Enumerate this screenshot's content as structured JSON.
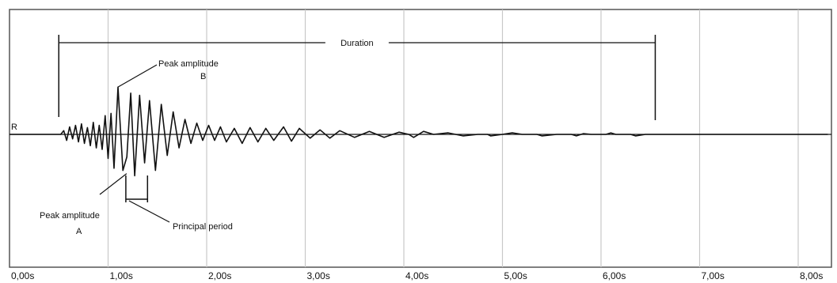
{
  "chart_data": {
    "type": "line",
    "title": "",
    "xlabel": "",
    "ylabel": "",
    "series_label": "R",
    "x_ticks": [
      "0,00s",
      "1,00s",
      "2,00s",
      "3,00s",
      "4,00s",
      "5,00s",
      "6,00s",
      "7,00s",
      "8,00s"
    ],
    "xlim": [
      0,
      8.3
    ],
    "grid": {
      "vertical": true,
      "horizontal": false
    },
    "duration": {
      "label": "Duration",
      "start": 0.5,
      "end": 6.55
    },
    "annotations": {
      "peak_b": {
        "line1": "Peak amplitude",
        "line2": "B",
        "x": 1.1
      },
      "peak_a": {
        "line1": "Peak amplitude",
        "line2": "A",
        "x": 1.22
      },
      "principal_period": {
        "label": "Principal period",
        "start": 1.18,
        "end": 1.4
      }
    },
    "waveform": {
      "baseline": 0,
      "points": [
        [
          0.0,
          0
        ],
        [
          0.52,
          0
        ],
        [
          0.55,
          0.05
        ],
        [
          0.58,
          -0.08
        ],
        [
          0.61,
          0.1
        ],
        [
          0.64,
          -0.06
        ],
        [
          0.67,
          0.12
        ],
        [
          0.7,
          -0.1
        ],
        [
          0.73,
          0.14
        ],
        [
          0.76,
          -0.12
        ],
        [
          0.79,
          0.09
        ],
        [
          0.82,
          -0.15
        ],
        [
          0.85,
          0.16
        ],
        [
          0.88,
          -0.18
        ],
        [
          0.91,
          0.12
        ],
        [
          0.94,
          -0.2
        ],
        [
          0.97,
          0.25
        ],
        [
          1.0,
          -0.32
        ],
        [
          1.03,
          0.28
        ],
        [
          1.06,
          -0.45
        ],
        [
          1.1,
          0.63
        ],
        [
          1.15,
          -0.48
        ],
        [
          1.19,
          -0.3
        ],
        [
          1.23,
          0.55
        ],
        [
          1.27,
          -0.55
        ],
        [
          1.32,
          0.52
        ],
        [
          1.37,
          -0.38
        ],
        [
          1.42,
          0.45
        ],
        [
          1.48,
          -0.48
        ],
        [
          1.54,
          0.4
        ],
        [
          1.6,
          -0.28
        ],
        [
          1.66,
          0.3
        ],
        [
          1.72,
          -0.18
        ],
        [
          1.78,
          0.2
        ],
        [
          1.84,
          -0.12
        ],
        [
          1.9,
          0.15
        ],
        [
          1.96,
          -0.08
        ],
        [
          2.02,
          0.12
        ],
        [
          2.08,
          -0.08
        ],
        [
          2.14,
          0.1
        ],
        [
          2.2,
          -0.1
        ],
        [
          2.28,
          0.08
        ],
        [
          2.36,
          -0.12
        ],
        [
          2.44,
          0.09
        ],
        [
          2.52,
          -0.1
        ],
        [
          2.6,
          0.08
        ],
        [
          2.68,
          -0.08
        ],
        [
          2.78,
          0.1
        ],
        [
          2.86,
          -0.09
        ],
        [
          2.94,
          0.08
        ],
        [
          3.05,
          -0.05
        ],
        [
          3.15,
          0.06
        ],
        [
          3.25,
          -0.05
        ],
        [
          3.35,
          0.05
        ],
        [
          3.5,
          -0.04
        ],
        [
          3.65,
          0.04
        ],
        [
          3.8,
          -0.04
        ],
        [
          3.95,
          0.03
        ],
        [
          4.05,
          0
        ],
        [
          4.1,
          -0.04
        ],
        [
          4.2,
          0.04
        ],
        [
          4.3,
          0
        ],
        [
          4.45,
          0.02
        ],
        [
          4.6,
          -0.02
        ],
        [
          4.75,
          0
        ],
        [
          4.85,
          0
        ],
        [
          4.88,
          -0.02
        ],
        [
          5.0,
          0
        ],
        [
          5.1,
          0.02
        ],
        [
          5.2,
          0
        ],
        [
          5.35,
          0
        ],
        [
          5.4,
          -0.02
        ],
        [
          5.55,
          0
        ],
        [
          5.7,
          0
        ],
        [
          5.75,
          -0.02
        ],
        [
          5.82,
          0.01
        ],
        [
          5.9,
          0
        ],
        [
          6.05,
          0
        ],
        [
          6.1,
          0.02
        ],
        [
          6.15,
          0
        ],
        [
          6.3,
          0
        ],
        [
          6.35,
          -0.02
        ],
        [
          6.45,
          0
        ],
        [
          6.55,
          0
        ],
        [
          8.3,
          0
        ]
      ]
    }
  }
}
